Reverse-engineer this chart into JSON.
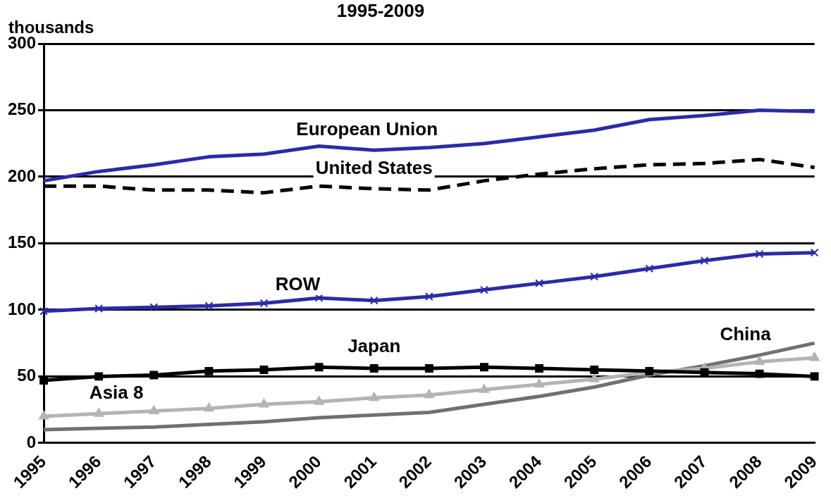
{
  "chart_data": {
    "type": "line",
    "title": "1995-2009",
    "ylabel": "thousands",
    "categories": [
      "1995",
      "1996",
      "1997",
      "1998",
      "1999",
      "2000",
      "2001",
      "2002",
      "2003",
      "2004",
      "2005",
      "2006",
      "2007",
      "2008",
      "2009"
    ],
    "series": [
      {
        "name": "European Union",
        "color": "#2b2ba8",
        "marker": "none",
        "line_style": "solid",
        "values": [
          197,
          204,
          209,
          215,
          217,
          223,
          220,
          222,
          225,
          230,
          235,
          243,
          246,
          250,
          249
        ]
      },
      {
        "name": "United States",
        "color": "#000000",
        "marker": "none",
        "line_style": "dashed",
        "values": [
          193,
          193,
          190,
          190,
          188,
          193,
          191,
          190,
          197,
          202,
          206,
          209,
          210,
          213,
          207
        ]
      },
      {
        "name": "ROW",
        "color": "#2b2ba8",
        "marker": "cross",
        "line_style": "solid",
        "values": [
          99,
          101,
          102,
          103,
          105,
          109,
          107,
          110,
          115,
          120,
          125,
          131,
          137,
          142,
          143
        ]
      },
      {
        "name": "Japan",
        "color": "#000000",
        "marker": "square",
        "line_style": "solid",
        "values": [
          47,
          50,
          51,
          54,
          55,
          57,
          56,
          56,
          57,
          56,
          55,
          54,
          53,
          52,
          50
        ]
      },
      {
        "name": "Asia 8",
        "color": "#b4b4b4",
        "marker": "triangle",
        "line_style": "solid",
        "values": [
          20,
          22,
          24,
          26,
          29,
          31,
          34,
          36,
          40,
          44,
          48,
          53,
          56,
          61,
          64
        ]
      },
      {
        "name": "China",
        "color": "#707070",
        "marker": "none",
        "line_style": "solid",
        "values": [
          10,
          11,
          12,
          14,
          16,
          19,
          21,
          23,
          29,
          35,
          42,
          51,
          58,
          66,
          75
        ]
      }
    ],
    "ylim": [
      0,
      300
    ],
    "yticks": [
      0,
      50,
      100,
      150,
      200,
      250,
      300
    ],
    "grid": "y",
    "legend": false
  }
}
